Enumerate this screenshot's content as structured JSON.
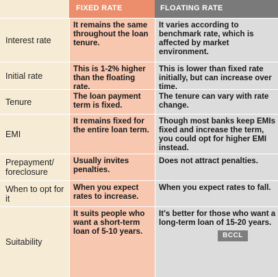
{
  "headers": {
    "fixed": "FIXED RATE",
    "floating": "FLOATING RATE"
  },
  "rows": [
    {
      "label": "Interest rate",
      "fixed": "It remains the same throughout the loan tenure.",
      "floating": "It varies according to benchmark rate, which is affected by market environment."
    },
    {
      "label": "Initial rate",
      "fixed": "This is 1-2% higher than the floating rate.",
      "floating": "This is lower than fixed rate initially, but can increase over time."
    },
    {
      "label": "Tenure",
      "fixed": "The loan payment term is fixed.",
      "floating": "The tenure can vary with rate change."
    },
    {
      "label": "EMI",
      "fixed": "It remains fixed for the entire loan term.",
      "floating": "Though most banks keep EMIs fixed and increase the term, you could opt for higher EMI instead."
    },
    {
      "label": "Prepayment/ foreclosure",
      "fixed": "Usually invites penalties.",
      "floating": "Does not attract penalties."
    },
    {
      "label": "When to opt for it",
      "fixed": "When you expect rates to increase.",
      "floating": "When you expect rates to fall."
    },
    {
      "label": "Suitability",
      "fixed": "It suits people who want a short-term loan of 5-10 years.",
      "floating": "It's better for those who want a long-term loan of 15-20 years."
    }
  ],
  "watermark": "BCCL"
}
